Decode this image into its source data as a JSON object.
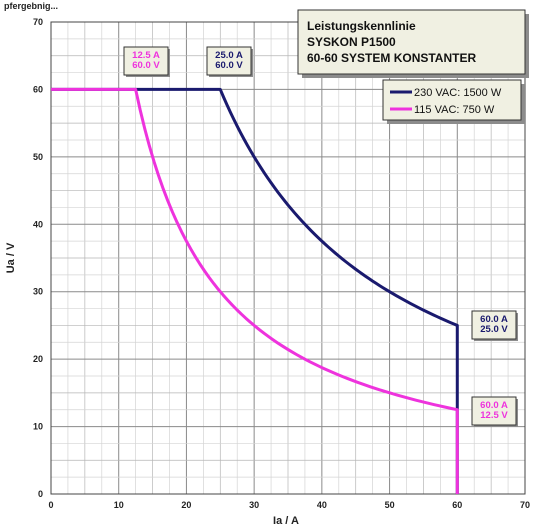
{
  "header_fragment": "pfergebnig...",
  "chart_data": {
    "type": "line",
    "title": [
      "Leistungskennlinie",
      "SYSKON P1500",
      "60-60 SYSTEM KONSTANTER"
    ],
    "xlabel": "Ia / A",
    "ylabel": "Ua / V",
    "xlim": [
      0,
      70
    ],
    "ylim": [
      0,
      70
    ],
    "x_ticks": [
      "0",
      "10",
      "20",
      "30",
      "40",
      "50",
      "60",
      "70"
    ],
    "y_ticks": [
      "0",
      "10",
      "20",
      "30",
      "40",
      "50",
      "60",
      "70"
    ],
    "grid": true,
    "minor_grid": true,
    "legend_position": "top-right",
    "series": [
      {
        "name": "230 VAC: 1500 W",
        "color": "#1a1a6e",
        "power": 1500
      },
      {
        "name": "115 VAC: 750 W",
        "color": "#ee33dd",
        "power": 750
      }
    ],
    "annotations": [
      {
        "lines": [
          "12.5 A",
          "60.0 V"
        ],
        "x": 12.5,
        "y": 60,
        "color": "#ee33dd"
      },
      {
        "lines": [
          "25.0 A",
          "60.0 V"
        ],
        "x": 25,
        "y": 60,
        "color": "#1a1a6e"
      },
      {
        "lines": [
          "60.0 A",
          "25.0 V"
        ],
        "x": 60,
        "y": 25,
        "color": "#1a1a6e"
      },
      {
        "lines": [
          "60.0 A",
          "12.5 V"
        ],
        "x": 60,
        "y": 12.5,
        "color": "#ee33dd"
      }
    ]
  }
}
